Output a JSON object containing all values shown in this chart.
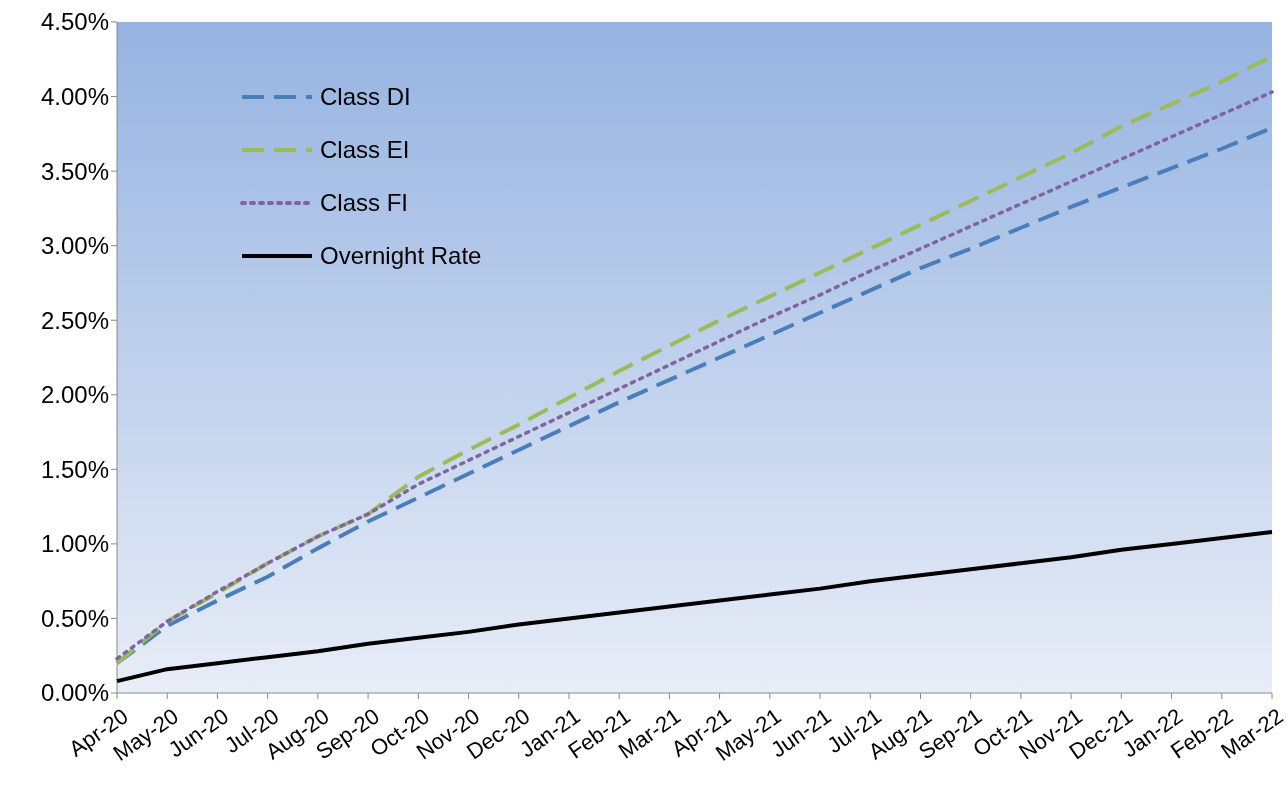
{
  "chart_data": {
    "type": "line",
    "categories": [
      "Apr-20",
      "May-20",
      "Jun-20",
      "Jul-20",
      "Aug-20",
      "Sep-20",
      "Oct-20",
      "Nov-20",
      "Dec-20",
      "Jan-21",
      "Feb-21",
      "Mar-21",
      "Apr-21",
      "May-21",
      "Jun-21",
      "Jul-21",
      "Aug-21",
      "Sep-21",
      "Oct-21",
      "Nov-21",
      "Dec-21",
      "Jan-22",
      "Feb-22",
      "Mar-22"
    ],
    "series": [
      {
        "name": "Class DI",
        "color": "#4a7ebb",
        "line_style": "dashed",
        "values": [
          0.2,
          0.45,
          0.62,
          0.78,
          0.97,
          1.15,
          1.31,
          1.47,
          1.63,
          1.79,
          1.95,
          2.1,
          2.25,
          2.4,
          2.55,
          2.7,
          2.85,
          2.98,
          3.12,
          3.26,
          3.39,
          3.52,
          3.65,
          3.79
        ]
      },
      {
        "name": "Class EI",
        "color": "#9bbb59",
        "line_style": "dashed",
        "values": [
          0.2,
          0.48,
          0.67,
          0.87,
          1.05,
          1.2,
          1.45,
          1.63,
          1.8,
          1.98,
          2.16,
          2.33,
          2.5,
          2.66,
          2.82,
          2.98,
          3.14,
          3.3,
          3.46,
          3.62,
          3.8,
          3.95,
          4.1,
          4.27
        ]
      },
      {
        "name": "Class FI",
        "color": "#8064a2",
        "line_style": "dotted",
        "values": [
          0.23,
          0.48,
          0.68,
          0.87,
          1.05,
          1.2,
          1.4,
          1.56,
          1.72,
          1.88,
          2.04,
          2.2,
          2.36,
          2.52,
          2.67,
          2.83,
          2.98,
          3.13,
          3.28,
          3.43,
          3.58,
          3.73,
          3.88,
          4.03
        ]
      },
      {
        "name": "Overnight Rate",
        "color": "#000000",
        "line_style": "solid",
        "values": [
          0.08,
          0.16,
          0.2,
          0.24,
          0.28,
          0.33,
          0.37,
          0.41,
          0.46,
          0.5,
          0.54,
          0.58,
          0.62,
          0.66,
          0.7,
          0.75,
          0.79,
          0.83,
          0.87,
          0.91,
          0.96,
          1.0,
          1.04,
          1.08
        ]
      }
    ],
    "ylim": [
      0,
      4.5
    ],
    "yticks": [
      {
        "value": 0,
        "label": "0.00%"
      },
      {
        "value": 0.5,
        "label": "0.50%"
      },
      {
        "value": 1,
        "label": "1.00%"
      },
      {
        "value": 1.5,
        "label": "1.50%"
      },
      {
        "value": 2,
        "label": "2.00%"
      },
      {
        "value": 2.5,
        "label": "2.50%"
      },
      {
        "value": 3,
        "label": "3.00%"
      },
      {
        "value": 3.5,
        "label": "3.50%"
      },
      {
        "value": 4,
        "label": "4.00%"
      },
      {
        "value": 4.5,
        "label": "4.50%"
      }
    ],
    "grid": false,
    "legend": "top left",
    "marker": "none"
  }
}
